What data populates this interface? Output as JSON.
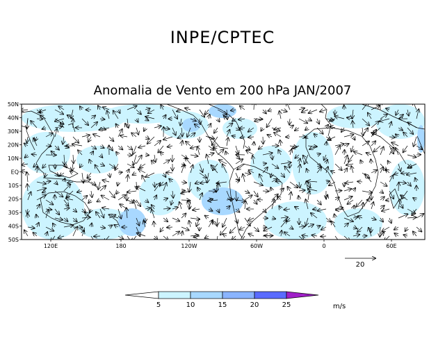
{
  "header": {
    "title": "INPE/CPTEC"
  },
  "map": {
    "title": "Anomalia de Vento em 200 hPa JAN/2007",
    "lat_labels": [
      "50N",
      "40N",
      "30N",
      "20N",
      "10N",
      "EQ",
      "10S",
      "20S",
      "30S",
      "40S",
      "50S"
    ],
    "lon_labels": [
      "120E",
      "180",
      "120W",
      "60W",
      "0",
      "60E"
    ],
    "reference_vector": {
      "label": "20",
      "value": 20
    },
    "shading": {
      "unit": "m/s",
      "levels": [
        "5",
        "10",
        "15",
        "20",
        "25"
      ],
      "colors": [
        "#ffffff",
        "#ccf4ff",
        "#a8d8ff",
        "#8ab4ff",
        "#5a6bff",
        "#a020c8"
      ]
    }
  }
}
